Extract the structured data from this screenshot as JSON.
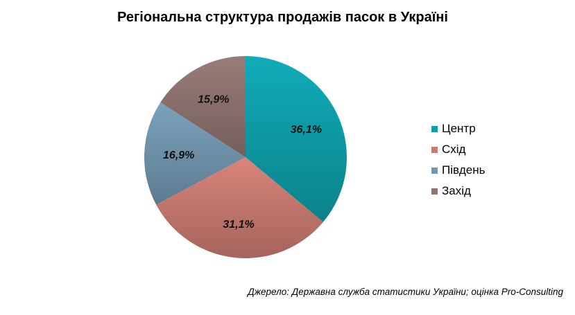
{
  "chart_data": {
    "type": "pie",
    "title": "Регіональна структура продажів пасок в Україні",
    "slices": [
      {
        "name": "Центр",
        "value": 36.1,
        "label": "36,1%",
        "color": "#0f9faa"
      },
      {
        "name": "Схід",
        "value": 31.1,
        "label": "31,1%",
        "color": "#c97a70"
      },
      {
        "name": "Південь",
        "value": 16.9,
        "label": "16,9%",
        "color": "#7296ae"
      },
      {
        "name": "Захід",
        "value": 15.9,
        "label": "15,9%",
        "color": "#8e7370"
      }
    ],
    "legend_position": "right",
    "source": "Джерело: Державна служба статистики України; оцінка Pro-Consulting"
  }
}
